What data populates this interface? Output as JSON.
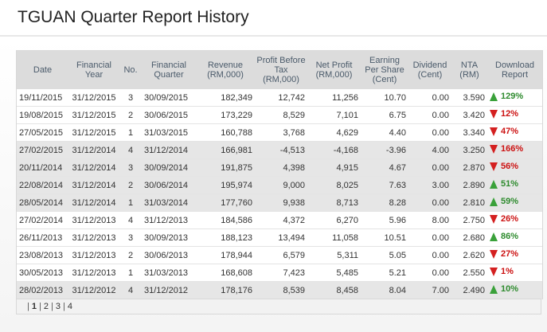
{
  "title": "TGUAN Quarter Report History",
  "columns": [
    {
      "key": "date",
      "label": "Date"
    },
    {
      "key": "fy",
      "label": "Financial Year"
    },
    {
      "key": "no",
      "label": "No."
    },
    {
      "key": "fq",
      "label": "Financial Quarter"
    },
    {
      "key": "rev",
      "label": "Revenue (RM,000)"
    },
    {
      "key": "pbt",
      "label": "Profit Before Tax (RM,000)"
    },
    {
      "key": "np",
      "label": "Net Profit (RM,000)"
    },
    {
      "key": "eps",
      "label": "Earning Per Share (Cent)"
    },
    {
      "key": "div",
      "label": "Dividend (Cent)"
    },
    {
      "key": "nta",
      "label": "NTA (RM)"
    },
    {
      "key": "dl",
      "label": "Download Report"
    }
  ],
  "rows": [
    {
      "date": "19/11/2015",
      "fy": "31/12/2015",
      "no": "3",
      "fq": "30/09/2015",
      "rev": "182,349",
      "pbt": "12,742",
      "np": "11,256",
      "eps": "10.70",
      "div": "0.00",
      "nta": "3.590",
      "dir": "up",
      "pct": "129%"
    },
    {
      "date": "19/08/2015",
      "fy": "31/12/2015",
      "no": "2",
      "fq": "30/06/2015",
      "rev": "173,229",
      "pbt": "8,529",
      "np": "7,101",
      "eps": "6.75",
      "div": "0.00",
      "nta": "3.420",
      "dir": "down",
      "pct": "12%"
    },
    {
      "date": "27/05/2015",
      "fy": "31/12/2015",
      "no": "1",
      "fq": "31/03/2015",
      "rev": "160,788",
      "pbt": "3,768",
      "np": "4,629",
      "eps": "4.40",
      "div": "0.00",
      "nta": "3.340",
      "dir": "down",
      "pct": "47%"
    },
    {
      "date": "27/02/2015",
      "fy": "31/12/2014",
      "no": "4",
      "fq": "31/12/2014",
      "rev": "166,981",
      "pbt": "-4,513",
      "np": "-4,168",
      "eps": "-3.96",
      "div": "4.00",
      "nta": "3.250",
      "dir": "down",
      "pct": "166%"
    },
    {
      "date": "20/11/2014",
      "fy": "31/12/2014",
      "no": "3",
      "fq": "30/09/2014",
      "rev": "191,875",
      "pbt": "4,398",
      "np": "4,915",
      "eps": "4.67",
      "div": "0.00",
      "nta": "2.870",
      "dir": "down",
      "pct": "56%"
    },
    {
      "date": "22/08/2014",
      "fy": "31/12/2014",
      "no": "2",
      "fq": "30/06/2014",
      "rev": "195,974",
      "pbt": "9,000",
      "np": "8,025",
      "eps": "7.63",
      "div": "3.00",
      "nta": "2.890",
      "dir": "up",
      "pct": "51%"
    },
    {
      "date": "28/05/2014",
      "fy": "31/12/2014",
      "no": "1",
      "fq": "31/03/2014",
      "rev": "177,760",
      "pbt": "9,938",
      "np": "8,713",
      "eps": "8.28",
      "div": "0.00",
      "nta": "2.810",
      "dir": "up",
      "pct": "59%"
    },
    {
      "date": "27/02/2014",
      "fy": "31/12/2013",
      "no": "4",
      "fq": "31/12/2013",
      "rev": "184,586",
      "pbt": "4,372",
      "np": "6,270",
      "eps": "5.96",
      "div": "8.00",
      "nta": "2.750",
      "dir": "down",
      "pct": "26%"
    },
    {
      "date": "26/11/2013",
      "fy": "31/12/2013",
      "no": "3",
      "fq": "30/09/2013",
      "rev": "188,123",
      "pbt": "13,494",
      "np": "11,058",
      "eps": "10.51",
      "div": "0.00",
      "nta": "2.680",
      "dir": "up",
      "pct": "86%"
    },
    {
      "date": "23/08/2013",
      "fy": "31/12/2013",
      "no": "2",
      "fq": "30/06/2013",
      "rev": "178,944",
      "pbt": "6,579",
      "np": "5,311",
      "eps": "5.05",
      "div": "0.00",
      "nta": "2.620",
      "dir": "down",
      "pct": "27%"
    },
    {
      "date": "30/05/2013",
      "fy": "31/12/2013",
      "no": "1",
      "fq": "31/03/2013",
      "rev": "168,608",
      "pbt": "7,423",
      "np": "5,485",
      "eps": "5.21",
      "div": "0.00",
      "nta": "2.550",
      "dir": "down",
      "pct": "1%"
    },
    {
      "date": "28/02/2013",
      "fy": "31/12/2012",
      "no": "4",
      "fq": "31/12/2012",
      "rev": "178,176",
      "pbt": "8,539",
      "np": "8,458",
      "eps": "8.04",
      "div": "7.00",
      "nta": "2.490",
      "dir": "up",
      "pct": "10%"
    }
  ],
  "pager": {
    "pages": [
      "1",
      "2",
      "3",
      "4"
    ],
    "current": "1",
    "separator": "|"
  },
  "colors": {
    "up": "#3aa13a",
    "down": "#d42020"
  }
}
